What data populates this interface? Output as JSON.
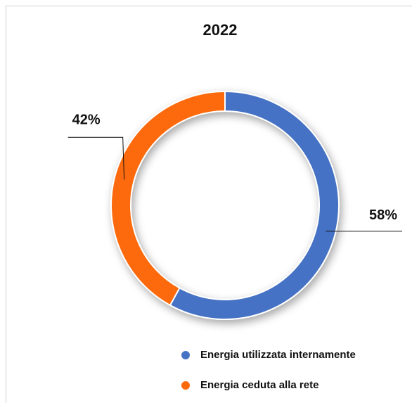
{
  "chart_data": {
    "type": "donut",
    "title": "2022",
    "categories": [
      "Energia utilizzata internamente",
      "Energia ceduta alla rete"
    ],
    "values": [
      58,
      42
    ],
    "value_labels": [
      "58%",
      "42%"
    ],
    "colors": [
      "#4472c4",
      "#fc6a0a"
    ],
    "legend": "bottom-right"
  }
}
